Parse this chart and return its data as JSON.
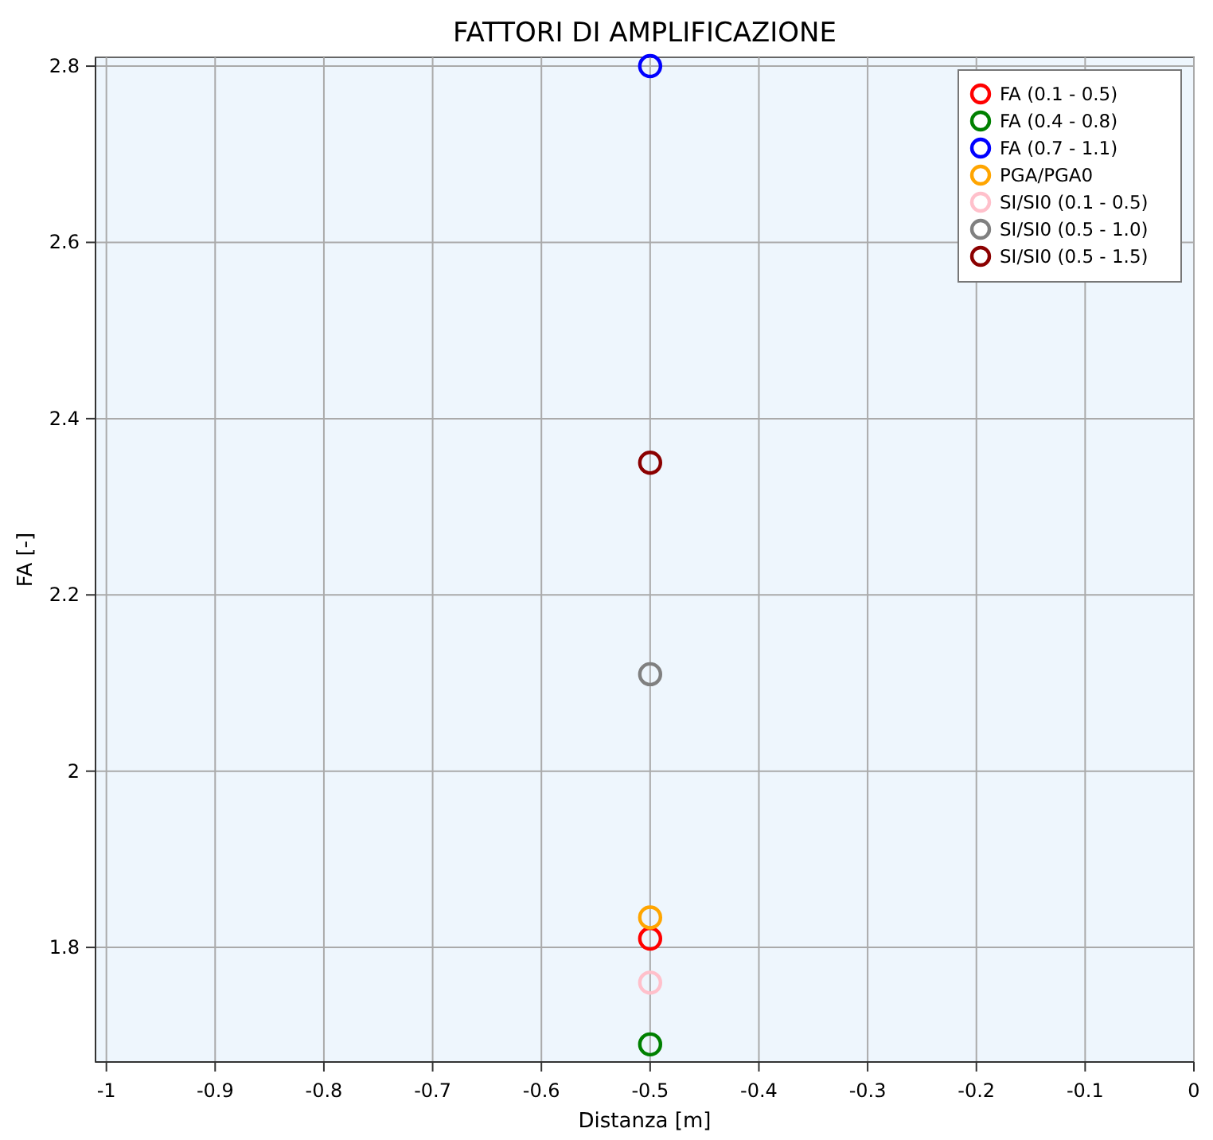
{
  "chart_data": {
    "type": "scatter",
    "title": "FATTORI DI AMPLIFICAZIONE",
    "xlabel": "Distanza [m]",
    "ylabel": "FA [-]",
    "xlim": [
      -1.01,
      0
    ],
    "ylim": [
      1.67,
      2.81
    ],
    "xticks": [
      -1,
      -0.9,
      -0.8,
      -0.7,
      -0.6,
      -0.5,
      -0.4,
      -0.3,
      -0.2,
      -0.1,
      0
    ],
    "yticks": [
      1.8,
      2,
      2.2,
      2.4,
      2.6,
      2.8
    ],
    "grid": true,
    "legend": "top right",
    "marker": "circle",
    "x": [
      -0.5
    ],
    "series": [
      {
        "name": "FA (0.1 - 0.5)",
        "color": "#ff0000",
        "values": [
          1.81
        ]
      },
      {
        "name": "FA (0.4 - 0.8)",
        "color": "#008000",
        "values": [
          1.69
        ]
      },
      {
        "name": "FA (0.7 - 1.1)",
        "color": "#0000ff",
        "values": [
          2.8
        ]
      },
      {
        "name": "PGA/PGA0",
        "color": "#ffa500",
        "values": [
          1.834
        ]
      },
      {
        "name": "SI/SI0 (0.1 - 0.5)",
        "color": "#ffc0cb",
        "values": [
          1.76
        ]
      },
      {
        "name": "SI/SI0 (0.5 - 1.0)",
        "color": "#808080",
        "values": [
          2.11
        ]
      },
      {
        "name": "SI/SI0 (0.5 - 1.5)",
        "color": "#8b0000",
        "values": [
          2.35
        ]
      }
    ]
  }
}
